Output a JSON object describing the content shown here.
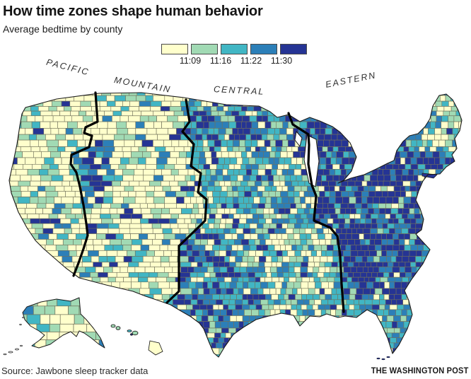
{
  "header": {
    "title": "How time zones shape human behavior",
    "subtitle": "Average bedtime by county"
  },
  "legend": {
    "labels": [
      "11:09",
      "11:16",
      "11:22",
      "11:30"
    ],
    "colors": [
      "#FFFFCC",
      "#A1DAB4",
      "#41B6C4",
      "#2C7FB8",
      "#253494"
    ]
  },
  "map": {
    "timezone_labels": [
      "PACIFIC",
      "MOUNTAIN",
      "CENTRAL",
      "EASTERN"
    ],
    "palette": {
      "yellow": "#FFFFCC",
      "green": "#A1DAB4",
      "teal": "#41B6C4",
      "blue": "#2C7FB8",
      "navy": "#253494"
    },
    "county_border_color": "#70705A",
    "timezone_boundary_color": "#000000",
    "outline_color": "#1a1a1a",
    "label_color": "#2e2e2e"
  },
  "chart_data": {
    "type": "heatmap",
    "title": "How time zones shape human behavior",
    "subtitle": "Average bedtime by county",
    "legend_tick_labels": [
      "11:09",
      "11:16",
      "11:22",
      "11:30"
    ],
    "palette": [
      "#FFFFCC",
      "#A1DAB4",
      "#41B6C4",
      "#2C7FB8",
      "#253494"
    ],
    "regions": [
      "PACIFIC",
      "MOUNTAIN",
      "CENTRAL",
      "EASTERN"
    ],
    "reading": "Counties shade darker (later bedtime) from west to east within each time zone; Eastern zone darkest, Pacific/Mountain lightest"
  },
  "footer": {
    "source": "Source: Jawbone sleep tracker data",
    "credit": "THE WASHINGTON POST"
  }
}
